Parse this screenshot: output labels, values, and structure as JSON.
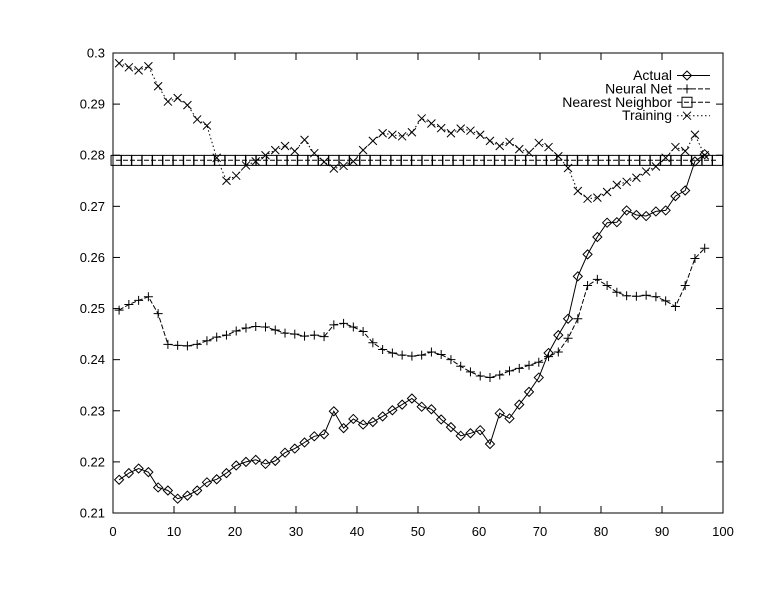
{
  "chart_data": {
    "type": "line",
    "title": "",
    "xlabel": "",
    "ylabel": "",
    "xlim": [
      0,
      100
    ],
    "ylim": [
      0.21,
      0.3
    ],
    "grid": false,
    "background": "#ffffff",
    "stroke_color": "#000000",
    "legend": {
      "position": "top-right-inside",
      "order": [
        "Actual",
        "Neural Net",
        "Nearest Neighbor",
        "Training"
      ]
    },
    "x_ticks": [
      0,
      10,
      20,
      30,
      40,
      50,
      60,
      70,
      80,
      90,
      100
    ],
    "x_tick_labels": [
      "0",
      "10",
      "20",
      "30",
      "40",
      "50",
      "60",
      "70",
      "80",
      "90",
      "100"
    ],
    "y_ticks": [
      0.21,
      0.22,
      0.23,
      0.24,
      0.25,
      0.26,
      0.27,
      0.28,
      0.29,
      0.3
    ],
    "y_tick_labels": [
      "0.21",
      "0.22",
      "0.23",
      "0.24",
      "0.25",
      "0.26",
      "0.27",
      "0.28",
      "0.29",
      "0.3"
    ],
    "series": [
      {
        "name": "Actual",
        "marker": "diamond",
        "line_style": "solid",
        "x": [
          1,
          2.6,
          4.2,
          5.8,
          7.4,
          9,
          10.6,
          12.2,
          13.8,
          15.4,
          17,
          18.6,
          20.2,
          21.8,
          23.4,
          25,
          26.6,
          28.2,
          29.8,
          31.4,
          33,
          34.6,
          36.2,
          37.8,
          39.4,
          41,
          42.6,
          44.2,
          45.8,
          47.4,
          49,
          50.6,
          52.2,
          53.8,
          55.4,
          57,
          58.6,
          60.2,
          61.8,
          63.4,
          65,
          66.6,
          68.2,
          69.8,
          71.4,
          73,
          74.6,
          76.2,
          77.8,
          79.4,
          81,
          82.6,
          84.2,
          85.8,
          87.4,
          89,
          90.6,
          92.2,
          93.8,
          95.4,
          97
        ],
        "y": [
          0.2165,
          0.2178,
          0.2187,
          0.218,
          0.215,
          0.2144,
          0.2128,
          0.2134,
          0.2144,
          0.216,
          0.2166,
          0.2178,
          0.2193,
          0.22,
          0.2204,
          0.2196,
          0.2202,
          0.2218,
          0.2226,
          0.2238,
          0.225,
          0.2254,
          0.2299,
          0.2266,
          0.2284,
          0.2273,
          0.2278,
          0.2289,
          0.2301,
          0.2312,
          0.2324,
          0.2308,
          0.2303,
          0.2283,
          0.2268,
          0.2251,
          0.2256,
          0.2262,
          0.2235,
          0.2295,
          0.2285,
          0.2312,
          0.2337,
          0.2365,
          0.2413,
          0.2448,
          0.248,
          0.2563,
          0.2606,
          0.264,
          0.2668,
          0.2669,
          0.2692,
          0.2683,
          0.2681,
          0.269,
          0.2692,
          0.272,
          0.2731,
          0.2788,
          0.2802
        ]
      },
      {
        "name": "Neural Net",
        "marker": "plus",
        "line_style": "dashed",
        "x": [
          1,
          2.6,
          4.2,
          5.8,
          7.4,
          9,
          10.6,
          12.2,
          13.8,
          15.4,
          17,
          18.6,
          20.2,
          21.8,
          23.4,
          25,
          26.6,
          28.2,
          29.8,
          31.4,
          33,
          34.6,
          36.2,
          37.8,
          39.4,
          41,
          42.6,
          44.2,
          45.8,
          47.4,
          49,
          50.6,
          52.2,
          53.8,
          55.4,
          57,
          58.6,
          60.2,
          61.8,
          63.4,
          65,
          66.6,
          68.2,
          69.8,
          71.4,
          73,
          74.6,
          76.2,
          77.8,
          79.4,
          81,
          82.6,
          84.2,
          85.8,
          87.4,
          89,
          90.6,
          92.2,
          93.8,
          95.4,
          97
        ],
        "y": [
          0.2497,
          0.2508,
          0.2516,
          0.2523,
          0.249,
          0.243,
          0.2428,
          0.2427,
          0.243,
          0.2437,
          0.2444,
          0.2448,
          0.2456,
          0.2462,
          0.2465,
          0.2464,
          0.2458,
          0.2452,
          0.245,
          0.2446,
          0.2448,
          0.2445,
          0.2468,
          0.2471,
          0.2464,
          0.2455,
          0.2433,
          0.242,
          0.2413,
          0.2409,
          0.2407,
          0.2409,
          0.2415,
          0.241,
          0.24,
          0.2387,
          0.2376,
          0.2368,
          0.2365,
          0.237,
          0.2378,
          0.2383,
          0.2389,
          0.2395,
          0.2406,
          0.2415,
          0.2442,
          0.248,
          0.2545,
          0.2557,
          0.2545,
          0.2532,
          0.2525,
          0.2524,
          0.2526,
          0.2523,
          0.2515,
          0.2504,
          0.2545,
          0.2598,
          0.2618
        ]
      },
      {
        "name": "Nearest Neighbor",
        "marker": "square",
        "line_style": "dashed",
        "x_range": {
          "start": 0.5,
          "end": 99.1,
          "step": 1.7
        },
        "y_const": 0.279
      },
      {
        "name": "Training",
        "marker": "x",
        "line_style": "dotted",
        "x": [
          1,
          2.6,
          4.2,
          5.8,
          7.4,
          9,
          10.6,
          12.2,
          13.8,
          15.4,
          17,
          18.6,
          20.2,
          21.8,
          23.4,
          25,
          26.6,
          28.2,
          29.8,
          31.4,
          33,
          34.6,
          36.2,
          37.8,
          39.4,
          41,
          42.6,
          44.2,
          45.8,
          47.4,
          49,
          50.6,
          52.2,
          53.8,
          55.4,
          57,
          58.6,
          60.2,
          61.8,
          63.4,
          65,
          66.6,
          68.2,
          69.8,
          71.4,
          73,
          74.6,
          76.2,
          77.8,
          79.4,
          81,
          82.6,
          84.2,
          85.8,
          87.4,
          89,
          90.6,
          92.2,
          93.8,
          95.4,
          97
        ],
        "y": [
          0.298,
          0.2972,
          0.2966,
          0.2974,
          0.2935,
          0.2905,
          0.2912,
          0.2898,
          0.287,
          0.2858,
          0.2795,
          0.275,
          0.276,
          0.278,
          0.2788,
          0.28,
          0.281,
          0.2818,
          0.2808,
          0.283,
          0.2804,
          0.2787,
          0.2774,
          0.2779,
          0.2788,
          0.281,
          0.2828,
          0.2843,
          0.284,
          0.2837,
          0.2845,
          0.2872,
          0.2862,
          0.2853,
          0.2843,
          0.2852,
          0.2848,
          0.284,
          0.2828,
          0.2818,
          0.2826,
          0.2812,
          0.2805,
          0.2824,
          0.2816,
          0.2798,
          0.2775,
          0.273,
          0.2715,
          0.2717,
          0.2728,
          0.2742,
          0.2748,
          0.2756,
          0.2768,
          0.2778,
          0.2795,
          0.2816,
          0.2808,
          0.284,
          0.28
        ]
      }
    ]
  }
}
